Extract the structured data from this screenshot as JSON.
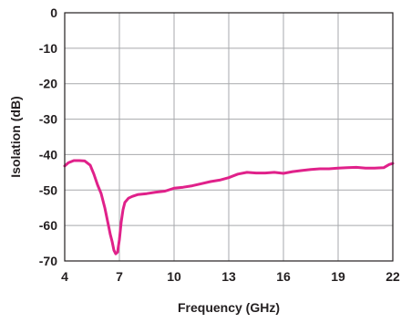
{
  "chart_data": {
    "type": "line",
    "title": "",
    "xlabel": "Frequency (GHz)",
    "ylabel": "Isolation (dB)",
    "xlim": [
      4,
      22
    ],
    "ylim": [
      -70,
      0
    ],
    "x_ticks": [
      4,
      7,
      10,
      13,
      16,
      19,
      22
    ],
    "y_ticks": [
      0,
      -10,
      -20,
      -30,
      -40,
      -50,
      -60,
      -70
    ],
    "x_tick_labels": [
      "4",
      "7",
      "10",
      "13",
      "16",
      "19",
      "22"
    ],
    "y_tick_labels": [
      "0",
      "-10",
      "-20",
      "-30",
      "-40",
      "-50",
      "-60",
      "-70"
    ],
    "grid": true,
    "legend": "none",
    "series": [
      {
        "color": "#e0218a",
        "x": [
          4.0,
          4.2,
          4.5,
          4.8,
          5.1,
          5.4,
          5.6,
          5.8,
          6.0,
          6.2,
          6.4,
          6.5,
          6.6,
          6.7,
          6.8,
          6.9,
          7.0,
          7.1,
          7.2,
          7.3,
          7.5,
          7.7,
          8.0,
          8.5,
          9.0,
          9.5,
          10.0,
          10.5,
          11.0,
          11.5,
          12.0,
          12.5,
          13.0,
          13.5,
          14.0,
          14.5,
          15.0,
          15.5,
          16.0,
          16.5,
          17.0,
          17.5,
          18.0,
          18.5,
          19.0,
          19.5,
          20.0,
          20.5,
          21.0,
          21.5,
          21.8,
          22.0
        ],
        "y": [
          -43.2,
          -42.3,
          -41.7,
          -41.7,
          -41.8,
          -43.0,
          -45.5,
          -48.5,
          -51.0,
          -55.0,
          -60.0,
          -62.5,
          -64.5,
          -67.0,
          -68.0,
          -67.5,
          -64.0,
          -59.0,
          -55.5,
          -53.5,
          -52.3,
          -51.8,
          -51.3,
          -51.0,
          -50.6,
          -50.3,
          -49.5,
          -49.2,
          -48.8,
          -48.2,
          -47.6,
          -47.2,
          -46.5,
          -45.5,
          -45.0,
          -45.2,
          -45.2,
          -45.0,
          -45.3,
          -44.8,
          -44.5,
          -44.2,
          -44.0,
          -44.0,
          -43.8,
          -43.7,
          -43.6,
          -43.8,
          -43.8,
          -43.7,
          -42.8,
          -42.5
        ]
      }
    ]
  }
}
